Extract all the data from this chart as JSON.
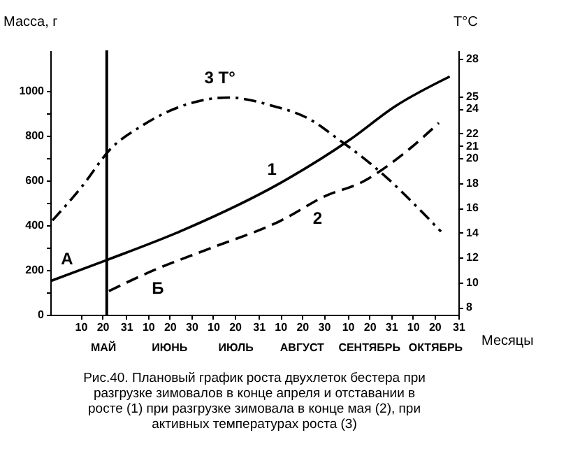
{
  "chart_data": {
    "type": "line",
    "ylabel": "Масса, г",
    "y2label": "T°C",
    "xlabel": "Месяцы",
    "annotations": [
      "Рис.40. Плановый график роста двухлеток бестера при разгрузке зимовалов в конце апреля и отставании в росте (1) при разгрузке зимовала в конце мая (2), при активных температурах роста (3)",
      "А",
      "Б",
      "МАЙ",
      "ИЮНЬ",
      "ИЮЛЬ",
      "АВГУСТ",
      "СЕНТЯБРЬ",
      "ОКТЯБРЬ"
    ],
    "series": [
      {
        "name": "1",
        "color": "#000000",
        "line_style": "solid",
        "x": [
          "--04-26",
          "--05-22",
          "--06-27",
          "--08-10",
          "--09-11",
          "--10-02",
          "--10-27"
        ],
        "values": [
          150,
          244,
          381,
          588,
          781,
          931,
          1063
        ]
      },
      {
        "name": "2",
        "color": "#000000",
        "line_style": "dashed",
        "x": [
          "--05-23",
          "--06-13",
          "--07-08",
          "--08-10",
          "--08-31",
          "--09-17",
          "--10-05",
          "--10-22"
        ],
        "values": [
          106,
          200,
          294,
          419,
          531,
          594,
          713,
          856
        ]
      },
      {
        "name": "3 T°",
        "color": "#000000",
        "line_style": "dashdot",
        "axis": "y2",
        "x": [
          "--04-27",
          "--05-10",
          "--05-24",
          "--06-07",
          "--06-27",
          "--07-17",
          "--08-05",
          "--08-24",
          "--09-06",
          "--09-16",
          "--09-27",
          "--10-13",
          "--10-23"
        ],
        "values": [
          15.0,
          17.6,
          20.8,
          22.6,
          24.3,
          24.9,
          24.3,
          23.1,
          21.5,
          20.2,
          18.6,
          15.9,
          14.1
        ]
      }
    ],
    "ref_lines": [
      {
        "axis": "x",
        "value": "--05-22",
        "color": "#000000"
      }
    ],
    "xlim": [
      "--04-26",
      "--10-31"
    ],
    "xticks": [
      {
        "value": "--05-10",
        "label": "10"
      },
      {
        "value": "--05-20",
        "label": "20"
      },
      {
        "value": "--05-31",
        "label": "31"
      },
      {
        "value": "--06-10",
        "label": "10"
      },
      {
        "value": "--06-20",
        "label": "20"
      },
      {
        "value": "--06-30",
        "label": "30"
      },
      {
        "value": "--07-10",
        "label": "10"
      },
      {
        "value": "--07-20",
        "label": "20"
      },
      {
        "value": "--07-31",
        "label": "31"
      },
      {
        "value": "--08-10",
        "label": "10"
      },
      {
        "value": "--08-20",
        "label": "20"
      },
      {
        "value": "--08-30",
        "label": "30"
      },
      {
        "value": "--09-10",
        "label": "10"
      },
      {
        "value": "--09-20",
        "label": "20"
      },
      {
        "value": "--09-30",
        "label": "31"
      },
      {
        "value": "--10-10",
        "label": "10"
      },
      {
        "value": "--10-20",
        "label": "20"
      },
      {
        "value": "--10-31",
        "label": "31"
      }
    ],
    "ylim": [
      0,
      1180
    ],
    "yticks": [
      0,
      {
        "value": 100,
        "label": null
      },
      200,
      {
        "value": 300,
        "label": null
      },
      400,
      {
        "value": 500,
        "label": null
      },
      600,
      {
        "value": 700,
        "label": null
      },
      800,
      {
        "value": 900,
        "label": null
      },
      1000
    ],
    "y2lim": [
      7.4,
      28.7
    ],
    "y2ticks": [
      8,
      10,
      12,
      14,
      16,
      18,
      20,
      21,
      22,
      24,
      25,
      28
    ],
    "grid": false
  }
}
